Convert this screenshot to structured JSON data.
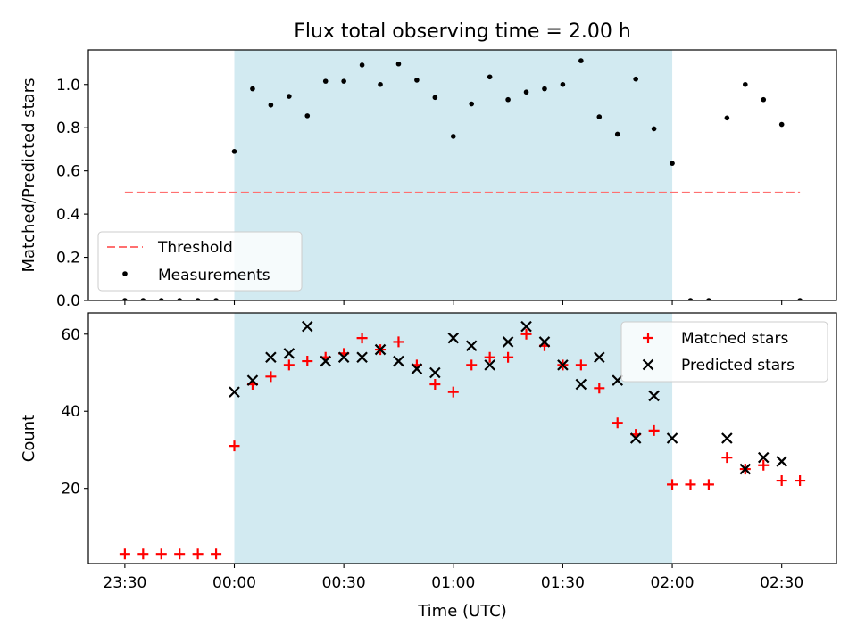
{
  "chart_data": {
    "title": "Flux total observing time = 2.00 h",
    "xlabel": "Time (UTC)",
    "x_ticks": [
      {
        "minutes": -30,
        "label": "23:30"
      },
      {
        "minutes": 0,
        "label": "00:00"
      },
      {
        "minutes": 30,
        "label": "00:30"
      },
      {
        "minutes": 60,
        "label": "01:00"
      },
      {
        "minutes": 90,
        "label": "01:30"
      },
      {
        "minutes": 120,
        "label": "02:00"
      },
      {
        "minutes": 150,
        "label": "02:30"
      }
    ],
    "xlim_minutes": [
      -40,
      165
    ],
    "shaded_span_minutes": [
      0,
      120
    ],
    "shade_color": "#add8e6",
    "panels": [
      {
        "type": "scatter",
        "ylabel": "Matched/Predicted stars",
        "ylim": [
          0,
          1.16
        ],
        "y_ticks": [
          0.0,
          0.2,
          0.4,
          0.6,
          0.8,
          1.0
        ],
        "y_tick_labels": [
          "0.0",
          "0.2",
          "0.4",
          "0.6",
          "0.8",
          "1.0"
        ],
        "threshold": {
          "name": "Threshold",
          "value": 0.5,
          "x_range_minutes": [
            -30,
            155
          ],
          "color": "#ff7070"
        },
        "legend": {
          "placement": "lower-left",
          "entries": [
            "Threshold",
            "Measurements"
          ]
        },
        "series": [
          {
            "name": "Measurements",
            "color": "#000000",
            "marker": "dot",
            "points": [
              [
                -30,
                0.0
              ],
              [
                -25,
                0.0
              ],
              [
                -20,
                0.0
              ],
              [
                -15,
                0.0
              ],
              [
                -10,
                0.0
              ],
              [
                -5,
                0.0
              ],
              [
                0,
                0.69
              ],
              [
                5,
                0.98
              ],
              [
                10,
                0.905
              ],
              [
                15,
                0.945
              ],
              [
                20,
                0.855
              ],
              [
                25,
                1.015
              ],
              [
                30,
                1.015
              ],
              [
                35,
                1.09
              ],
              [
                40,
                1.0
              ],
              [
                45,
                1.095
              ],
              [
                50,
                1.02
              ],
              [
                55,
                0.94
              ],
              [
                60,
                0.76
              ],
              [
                65,
                0.91
              ],
              [
                70,
                1.035
              ],
              [
                75,
                0.93
              ],
              [
                80,
                0.965
              ],
              [
                85,
                0.98
              ],
              [
                90,
                1.0
              ],
              [
                95,
                1.11
              ],
              [
                100,
                0.85
              ],
              [
                105,
                0.77
              ],
              [
                110,
                1.025
              ],
              [
                115,
                0.795
              ],
              [
                120,
                0.635
              ],
              [
                125,
                0.0
              ],
              [
                130,
                0.0
              ],
              [
                135,
                0.845
              ],
              [
                140,
                1.0
              ],
              [
                145,
                0.93
              ],
              [
                150,
                0.815
              ],
              [
                155,
                0.0
              ]
            ]
          }
        ]
      },
      {
        "type": "scatter",
        "ylabel": "Count",
        "ylim": [
          0.5,
          65.5
        ],
        "y_ticks": [
          20,
          40,
          60
        ],
        "y_tick_labels": [
          "20",
          "40",
          "60"
        ],
        "legend": {
          "placement": "upper-right",
          "entries": [
            "Matched stars",
            "Predicted stars"
          ]
        },
        "series": [
          {
            "name": "Matched stars",
            "color": "#ff0000",
            "marker": "plus",
            "points": [
              [
                -30,
                3
              ],
              [
                -25,
                3
              ],
              [
                -20,
                3
              ],
              [
                -15,
                3
              ],
              [
                -10,
                3
              ],
              [
                -5,
                3
              ],
              [
                0,
                31
              ],
              [
                5,
                47
              ],
              [
                10,
                49
              ],
              [
                15,
                52
              ],
              [
                20,
                53
              ],
              [
                25,
                54
              ],
              [
                30,
                55
              ],
              [
                35,
                59
              ],
              [
                40,
                56
              ],
              [
                45,
                58
              ],
              [
                50,
                52
              ],
              [
                55,
                47
              ],
              [
                60,
                45
              ],
              [
                65,
                52
              ],
              [
                70,
                54
              ],
              [
                75,
                54
              ],
              [
                80,
                60
              ],
              [
                85,
                57
              ],
              [
                90,
                52
              ],
              [
                95,
                52
              ],
              [
                100,
                46
              ],
              [
                105,
                37
              ],
              [
                110,
                34
              ],
              [
                115,
                35
              ],
              [
                120,
                21
              ],
              [
                125,
                21
              ],
              [
                130,
                21
              ],
              [
                135,
                28
              ],
              [
                140,
                25
              ],
              [
                145,
                26
              ],
              [
                150,
                22
              ],
              [
                155,
                22
              ]
            ]
          },
          {
            "name": "Predicted stars",
            "color": "#000000",
            "marker": "x",
            "points": [
              [
                0,
                45
              ],
              [
                5,
                48
              ],
              [
                10,
                54
              ],
              [
                15,
                55
              ],
              [
                20,
                62
              ],
              [
                25,
                53
              ],
              [
                30,
                54
              ],
              [
                35,
                54
              ],
              [
                40,
                56
              ],
              [
                45,
                53
              ],
              [
                50,
                51
              ],
              [
                55,
                50
              ],
              [
                60,
                59
              ],
              [
                65,
                57
              ],
              [
                70,
                52
              ],
              [
                75,
                58
              ],
              [
                80,
                62
              ],
              [
                85,
                58
              ],
              [
                90,
                52
              ],
              [
                95,
                47
              ],
              [
                100,
                54
              ],
              [
                105,
                48
              ],
              [
                110,
                33
              ],
              [
                115,
                44
              ],
              [
                120,
                33
              ],
              [
                135,
                33
              ],
              [
                140,
                25
              ],
              [
                145,
                28
              ],
              [
                150,
                27
              ]
            ]
          }
        ]
      }
    ]
  }
}
